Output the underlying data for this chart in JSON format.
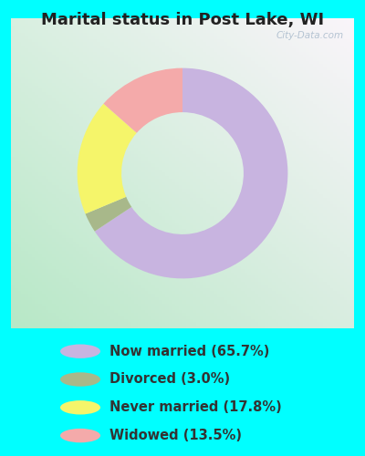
{
  "title": "Marital status in Post Lake, WI",
  "slices": [
    65.7,
    3.0,
    17.8,
    13.5
  ],
  "labels": [
    "Now married (65.7%)",
    "Divorced (3.0%)",
    "Never married (17.8%)",
    "Widowed (13.5%)"
  ],
  "colors": [
    "#c8b4e0",
    "#a8b88a",
    "#f5f56a",
    "#f4aaaa"
  ],
  "outer_bg": "#00ffff",
  "chart_bg_top": "#f0f8f0",
  "chart_bg_bottom": "#c8e8d0",
  "title_fontsize": 13,
  "legend_fontsize": 10.5,
  "watermark": "City-Data.com"
}
